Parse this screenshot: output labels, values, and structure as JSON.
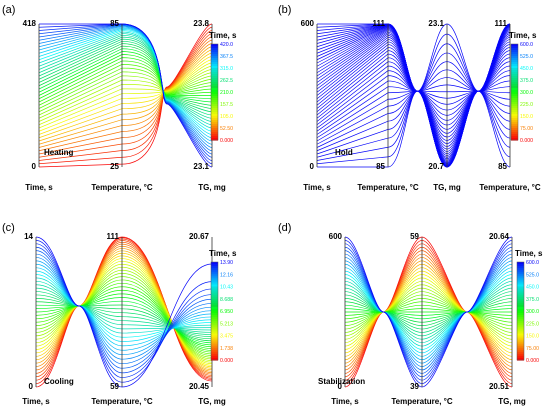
{
  "chart_data": [
    {
      "panel_label": "(a)",
      "type": "parallel-coordinates",
      "annotation": "Heating",
      "axes": [
        {
          "label": "Time, s",
          "top": "418",
          "bottom": "0"
        },
        {
          "label": "Temperature, °C",
          "top": "85",
          "bottom": "25"
        },
        {
          "label": "TG, mg",
          "top": "23.8",
          "bottom": "23.1"
        }
      ],
      "colorbar": {
        "title": "Time, s",
        "ticks": [
          "420.0",
          "367.5",
          "315.0",
          "262.5",
          "210.0",
          "157.5",
          "105.0",
          "52.50",
          "0.000"
        ]
      }
    },
    {
      "panel_label": "(b)",
      "type": "parallel-coordinates",
      "annotation": "Hold",
      "axes": [
        {
          "label": "Time, s",
          "top": "600",
          "bottom": "0"
        },
        {
          "label": "Temperature, °C",
          "top": "111",
          "bottom": "85"
        },
        {
          "label": "TG, mg",
          "top": "23.1",
          "bottom": "20.7"
        },
        {
          "label": "Temperature, °C",
          "top": "111",
          "bottom": "85"
        }
      ],
      "colorbar": {
        "title": "Time, s",
        "ticks": [
          "600.0",
          "525.0",
          "450.0",
          "375.0",
          "300.0",
          "225.0",
          "150.0",
          "75.00",
          "0.000"
        ]
      }
    },
    {
      "panel_label": "(c)",
      "type": "parallel-coordinates",
      "annotation": "Cooling",
      "axes": [
        {
          "label": "Time, s",
          "top": "14",
          "bottom": "0"
        },
        {
          "label": "Temperature, °C",
          "top": "111",
          "bottom": "59"
        },
        {
          "label": "TG, mg",
          "top": "20.67",
          "bottom": "20.45"
        }
      ],
      "colorbar": {
        "title": "Time, s",
        "ticks": [
          "13.90",
          "12.16",
          "10.43",
          "8.688",
          "6.950",
          "5.213",
          "3.475",
          "1.738",
          "0.000"
        ]
      }
    },
    {
      "panel_label": "(d)",
      "type": "parallel-coordinates",
      "annotation": "Stabilization",
      "axes": [
        {
          "label": "Time, s",
          "top": "600",
          "bottom": "0"
        },
        {
          "label": "Temperature, °C",
          "top": "59",
          "bottom": "39"
        },
        {
          "label": "TG, mg",
          "top": "20.64",
          "bottom": "20.51"
        }
      ],
      "colorbar": {
        "title": "Time, s",
        "ticks": [
          "600.0",
          "525.0",
          "450.0",
          "375.0",
          "300.0",
          "225.0",
          "150.0",
          "75.00",
          "0.000"
        ]
      }
    }
  ]
}
